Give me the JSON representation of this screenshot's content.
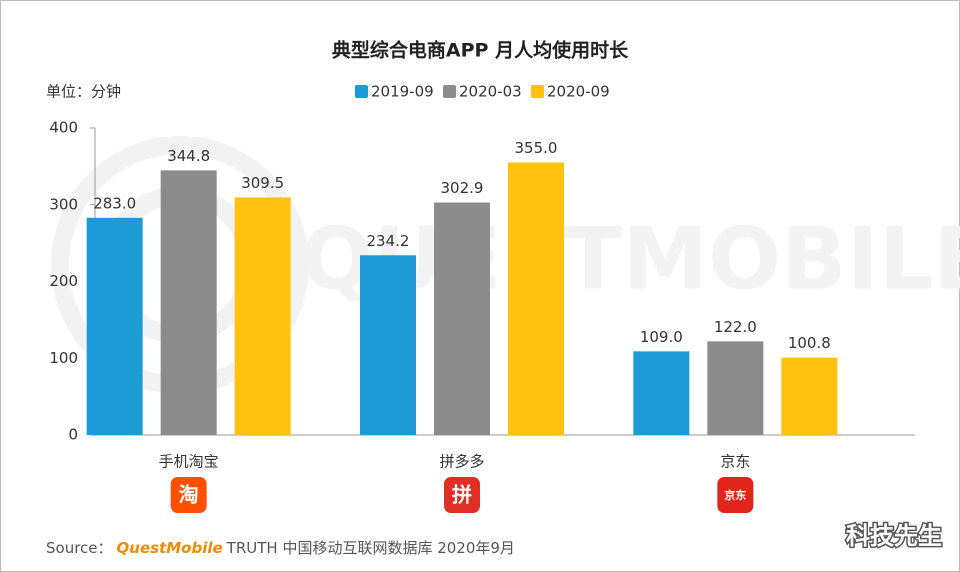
{
  "chart_data": {
    "type": "bar",
    "title": "典型综合电商APP 月人均使用时长",
    "unit_label": "单位：分钟",
    "categories": [
      "手机淘宝",
      "拼多多",
      "京东"
    ],
    "series": [
      {
        "name": "2019-09",
        "color": "#1c9bd7",
        "values": [
          283.0,
          234.2,
          109.0
        ],
        "value_labels": [
          "283.0",
          "234.2",
          "109.0"
        ]
      },
      {
        "name": "2020-03",
        "color": "#8c8c8c",
        "values": [
          344.8,
          302.9,
          122.0
        ],
        "value_labels": [
          "344.8",
          "302.9",
          "122.0"
        ]
      },
      {
        "name": "2020-09",
        "color": "#ffc20e",
        "values": [
          309.5,
          355.0,
          100.8
        ],
        "value_labels": [
          "309.5",
          "355.0",
          "100.8"
        ]
      }
    ],
    "ylim": [
      0,
      400
    ],
    "yticks": [
      0,
      100,
      200,
      300,
      400
    ],
    "grid": false,
    "icons": [
      "淘",
      "拼",
      "京东"
    ],
    "watermark": "QUESTMOBILE",
    "source": {
      "prefix": "Source：",
      "brand": "QuestMobile",
      "rest": "TRUTH 中国移动互联网数据库 2020年9月"
    },
    "signature": "科技先生"
  }
}
